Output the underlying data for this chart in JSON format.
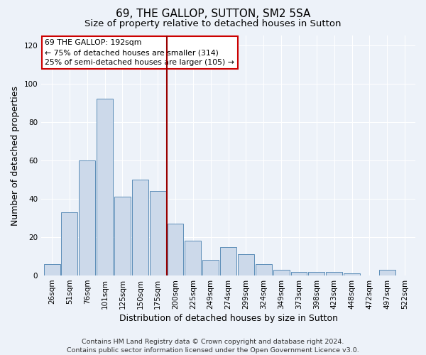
{
  "title": "69, THE GALLOP, SUTTON, SM2 5SA",
  "subtitle": "Size of property relative to detached houses in Sutton",
  "xlabel": "Distribution of detached houses by size in Sutton",
  "ylabel": "Number of detached properties",
  "categories": [
    "26sqm",
    "51sqm",
    "76sqm",
    "101sqm",
    "125sqm",
    "150sqm",
    "175sqm",
    "200sqm",
    "225sqm",
    "249sqm",
    "274sqm",
    "299sqm",
    "324sqm",
    "349sqm",
    "373sqm",
    "398sqm",
    "423sqm",
    "448sqm",
    "472sqm",
    "497sqm",
    "522sqm"
  ],
  "values": [
    6,
    33,
    60,
    92,
    41,
    50,
    44,
    27,
    18,
    8,
    15,
    11,
    6,
    3,
    2,
    2,
    2,
    1,
    0,
    3,
    0
  ],
  "bar_color": "#ccd9ea",
  "bar_edge_color": "#5b8db8",
  "vline_color": "#990000",
  "annotation_text": "69 THE GALLOP: 192sqm\n← 75% of detached houses are smaller (314)\n25% of semi-detached houses are larger (105) →",
  "annotation_box_color": "#ffffff",
  "annotation_box_edge": "#cc0000",
  "ylim": [
    0,
    125
  ],
  "yticks": [
    0,
    20,
    40,
    60,
    80,
    100,
    120
  ],
  "footer_line1": "Contains HM Land Registry data © Crown copyright and database right 2024.",
  "footer_line2": "Contains public sector information licensed under the Open Government Licence v3.0.",
  "bg_color": "#edf2f9",
  "grid_color": "#ffffff",
  "title_fontsize": 11,
  "subtitle_fontsize": 9.5,
  "axis_label_fontsize": 9,
  "tick_fontsize": 7.5,
  "annotation_fontsize": 7.8,
  "footer_fontsize": 6.8
}
